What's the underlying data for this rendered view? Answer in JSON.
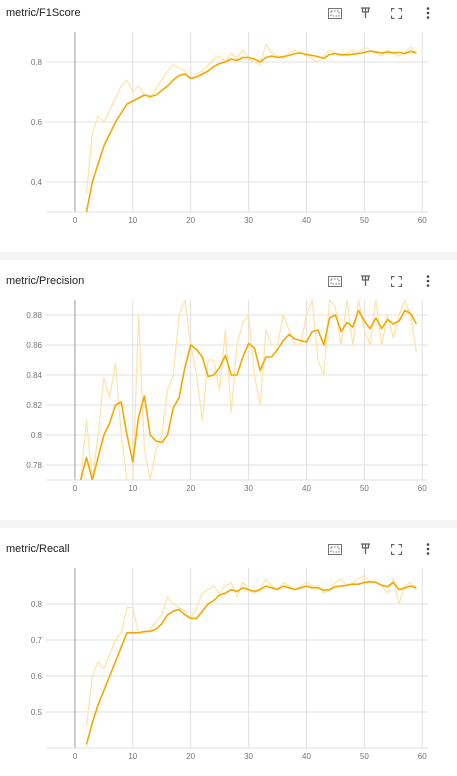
{
  "charts": [
    {
      "title": "metric/F1Score",
      "toolbar": {
        "fit_icon": "fit-domain-icon",
        "pin_icon": "pin-icon",
        "fullscreen_icon": "fullscreen-icon",
        "menu_icon": "more-vert-icon"
      }
    },
    {
      "title": "metric/Precision",
      "toolbar": {
        "fit_icon": "fit-domain-icon",
        "pin_icon": "pin-icon",
        "fullscreen_icon": "fullscreen-icon",
        "menu_icon": "more-vert-icon"
      }
    },
    {
      "title": "metric/Recall",
      "toolbar": {
        "fit_icon": "fit-domain-icon",
        "pin_icon": "pin-icon",
        "fullscreen_icon": "fullscreen-icon",
        "menu_icon": "more-vert-icon"
      }
    }
  ],
  "colors": {
    "smoothed": "#f2a900",
    "raw": "#fde3a7",
    "grid": "#e0e0e0",
    "axis": "#9e9e9e"
  },
  "chart_data": [
    {
      "type": "line",
      "title": "metric/F1Score",
      "xlim": [
        -5,
        61
      ],
      "ylim": [
        0.3,
        0.9
      ],
      "xticks": [
        0,
        10,
        20,
        30,
        40,
        50,
        60
      ],
      "yticks": [
        0.4,
        0.6,
        0.8
      ],
      "ytick_labels": [
        "0.4",
        "0.6",
        "0.8"
      ],
      "grid": true,
      "series": [
        {
          "kind": "smoothed",
          "x": [
            2,
            3,
            4,
            5,
            6,
            7,
            8,
            9,
            10,
            11,
            12,
            13,
            14,
            15,
            16,
            17,
            18,
            19,
            20,
            21,
            22,
            23,
            24,
            25,
            26,
            27,
            28,
            29,
            30,
            31,
            32,
            33,
            34,
            35,
            36,
            37,
            38,
            39,
            40,
            41,
            42,
            43,
            44,
            45,
            46,
            47,
            48,
            49,
            50,
            51,
            52,
            53,
            54,
            55,
            56,
            57,
            58,
            59
          ],
          "y": [
            0.3,
            0.4,
            0.46,
            0.52,
            0.56,
            0.6,
            0.63,
            0.66,
            0.67,
            0.68,
            0.69,
            0.685,
            0.69,
            0.705,
            0.72,
            0.74,
            0.755,
            0.76,
            0.745,
            0.75,
            0.76,
            0.77,
            0.785,
            0.795,
            0.8,
            0.81,
            0.805,
            0.815,
            0.815,
            0.81,
            0.8,
            0.815,
            0.82,
            0.815,
            0.818,
            0.822,
            0.828,
            0.83,
            0.825,
            0.822,
            0.818,
            0.812,
            0.825,
            0.828,
            0.824,
            0.824,
            0.826,
            0.828,
            0.832,
            0.836,
            0.833,
            0.83,
            0.833,
            0.83,
            0.832,
            0.828,
            0.836,
            0.83
          ]
        },
        {
          "kind": "raw",
          "x": [
            2,
            3,
            4,
            5,
            6,
            7,
            8,
            9,
            10,
            11,
            12,
            13,
            14,
            15,
            16,
            17,
            18,
            19,
            20,
            21,
            22,
            23,
            24,
            25,
            26,
            27,
            28,
            29,
            30,
            31,
            32,
            33,
            34,
            35,
            36,
            37,
            38,
            39,
            40,
            41,
            42,
            43,
            44,
            45,
            46,
            47,
            48,
            49,
            50,
            51,
            52,
            53,
            54,
            55,
            56,
            57,
            58,
            59
          ],
          "y": [
            0.36,
            0.56,
            0.62,
            0.6,
            0.64,
            0.68,
            0.72,
            0.74,
            0.7,
            0.72,
            0.69,
            0.68,
            0.71,
            0.74,
            0.77,
            0.79,
            0.78,
            0.77,
            0.74,
            0.76,
            0.77,
            0.79,
            0.81,
            0.82,
            0.8,
            0.83,
            0.81,
            0.84,
            0.81,
            0.8,
            0.79,
            0.86,
            0.83,
            0.82,
            0.81,
            0.83,
            0.84,
            0.83,
            0.82,
            0.81,
            0.8,
            0.82,
            0.84,
            0.83,
            0.82,
            0.83,
            0.84,
            0.83,
            0.85,
            0.84,
            0.83,
            0.82,
            0.84,
            0.83,
            0.82,
            0.83,
            0.85,
            0.83
          ]
        }
      ]
    },
    {
      "type": "line",
      "title": "metric/Precision",
      "xlim": [
        -5,
        61
      ],
      "ylim": [
        0.77,
        0.89
      ],
      "xticks": [
        0,
        10,
        20,
        30,
        40,
        50,
        60
      ],
      "yticks": [
        0.78,
        0.8,
        0.82,
        0.84,
        0.86,
        0.88
      ],
      "ytick_labels": [
        "0.78",
        "0.8",
        "0.82",
        "0.84",
        "0.86",
        "0.88"
      ],
      "grid": true,
      "series": [
        {
          "kind": "smoothed",
          "x": [
            1,
            2,
            3,
            4,
            5,
            6,
            7,
            8,
            9,
            10,
            11,
            12,
            13,
            14,
            15,
            16,
            17,
            18,
            19,
            20,
            21,
            22,
            23,
            24,
            25,
            26,
            27,
            28,
            29,
            30,
            31,
            32,
            33,
            34,
            35,
            36,
            37,
            38,
            39,
            40,
            41,
            42,
            43,
            44,
            45,
            46,
            47,
            48,
            49,
            50,
            51,
            52,
            53,
            54,
            55,
            56,
            57,
            58,
            59
          ],
          "y": [
            0.77,
            0.785,
            0.77,
            0.785,
            0.8,
            0.808,
            0.82,
            0.822,
            0.8,
            0.782,
            0.812,
            0.826,
            0.8,
            0.796,
            0.795,
            0.8,
            0.818,
            0.825,
            0.845,
            0.86,
            0.857,
            0.852,
            0.839,
            0.84,
            0.845,
            0.853,
            0.84,
            0.84,
            0.852,
            0.861,
            0.858,
            0.843,
            0.852,
            0.852,
            0.857,
            0.863,
            0.867,
            0.864,
            0.863,
            0.862,
            0.869,
            0.87,
            0.86,
            0.878,
            0.88,
            0.869,
            0.875,
            0.872,
            0.883,
            0.876,
            0.871,
            0.878,
            0.871,
            0.877,
            0.874,
            0.876,
            0.883,
            0.881,
            0.874
          ]
        },
        {
          "kind": "raw",
          "x": [
            1,
            2,
            3,
            4,
            5,
            6,
            7,
            8,
            9,
            10,
            11,
            12,
            13,
            14,
            15,
            16,
            17,
            18,
            19,
            20,
            21,
            22,
            23,
            24,
            25,
            26,
            27,
            28,
            29,
            30,
            31,
            32,
            33,
            34,
            35,
            36,
            37,
            38,
            39,
            40,
            41,
            42,
            43,
            44,
            45,
            46,
            47,
            48,
            49,
            50,
            51,
            52,
            53,
            54,
            55,
            56,
            57,
            58,
            59
          ],
          "y": [
            0.77,
            0.81,
            0.77,
            0.8,
            0.838,
            0.825,
            0.848,
            0.8,
            0.77,
            0.77,
            0.88,
            0.79,
            0.77,
            0.79,
            0.8,
            0.83,
            0.84,
            0.88,
            0.89,
            0.86,
            0.84,
            0.81,
            0.85,
            0.85,
            0.83,
            0.87,
            0.815,
            0.86,
            0.875,
            0.88,
            0.84,
            0.82,
            0.87,
            0.86,
            0.86,
            0.88,
            0.87,
            0.86,
            0.86,
            0.88,
            0.89,
            0.85,
            0.84,
            0.89,
            0.885,
            0.86,
            0.89,
            0.86,
            0.89,
            0.87,
            0.86,
            0.89,
            0.86,
            0.88,
            0.865,
            0.88,
            0.89,
            0.88,
            0.855
          ]
        }
      ]
    },
    {
      "type": "line",
      "title": "metric/Recall",
      "xlim": [
        -5,
        61
      ],
      "ylim": [
        0.4,
        0.9
      ],
      "xticks": [
        0,
        10,
        20,
        30,
        40,
        50,
        60
      ],
      "yticks": [
        0.5,
        0.6,
        0.7,
        0.8
      ],
      "ytick_labels": [
        "0.5",
        "0.6",
        "0.7",
        "0.8"
      ],
      "grid": true,
      "series": [
        {
          "kind": "smoothed",
          "x": [
            2,
            3,
            4,
            5,
            6,
            7,
            8,
            9,
            10,
            11,
            12,
            13,
            14,
            15,
            16,
            17,
            18,
            19,
            20,
            21,
            22,
            23,
            24,
            25,
            26,
            27,
            28,
            29,
            30,
            31,
            32,
            33,
            34,
            35,
            36,
            37,
            38,
            39,
            40,
            41,
            42,
            43,
            44,
            45,
            46,
            47,
            48,
            49,
            50,
            51,
            52,
            53,
            54,
            55,
            56,
            57,
            58,
            59
          ],
          "y": [
            0.41,
            0.47,
            0.52,
            0.56,
            0.6,
            0.64,
            0.68,
            0.72,
            0.72,
            0.72,
            0.724,
            0.724,
            0.73,
            0.745,
            0.77,
            0.78,
            0.785,
            0.77,
            0.76,
            0.76,
            0.78,
            0.8,
            0.81,
            0.825,
            0.83,
            0.84,
            0.835,
            0.845,
            0.84,
            0.835,
            0.84,
            0.85,
            0.845,
            0.84,
            0.85,
            0.845,
            0.84,
            0.845,
            0.85,
            0.845,
            0.845,
            0.838,
            0.84,
            0.848,
            0.85,
            0.852,
            0.855,
            0.855,
            0.86,
            0.862,
            0.86,
            0.852,
            0.848,
            0.86,
            0.84,
            0.845,
            0.85,
            0.845
          ]
        },
        {
          "kind": "raw",
          "x": [
            2,
            3,
            4,
            5,
            6,
            7,
            8,
            9,
            10,
            11,
            12,
            13,
            14,
            15,
            16,
            17,
            18,
            19,
            20,
            21,
            22,
            23,
            24,
            25,
            26,
            27,
            28,
            29,
            30,
            31,
            32,
            33,
            34,
            35,
            36,
            37,
            38,
            39,
            40,
            41,
            42,
            43,
            44,
            45,
            46,
            47,
            48,
            49,
            50,
            51,
            52,
            53,
            54,
            55,
            56,
            57,
            58,
            59
          ],
          "y": [
            0.46,
            0.6,
            0.64,
            0.62,
            0.66,
            0.7,
            0.72,
            0.79,
            0.79,
            0.72,
            0.72,
            0.73,
            0.75,
            0.77,
            0.82,
            0.8,
            0.79,
            0.78,
            0.76,
            0.79,
            0.83,
            0.84,
            0.85,
            0.83,
            0.85,
            0.86,
            0.82,
            0.86,
            0.84,
            0.83,
            0.84,
            0.87,
            0.85,
            0.84,
            0.86,
            0.85,
            0.84,
            0.85,
            0.86,
            0.85,
            0.85,
            0.83,
            0.84,
            0.86,
            0.87,
            0.85,
            0.86,
            0.87,
            0.88,
            0.86,
            0.86,
            0.85,
            0.83,
            0.87,
            0.8,
            0.85,
            0.86,
            0.84
          ]
        }
      ]
    }
  ]
}
